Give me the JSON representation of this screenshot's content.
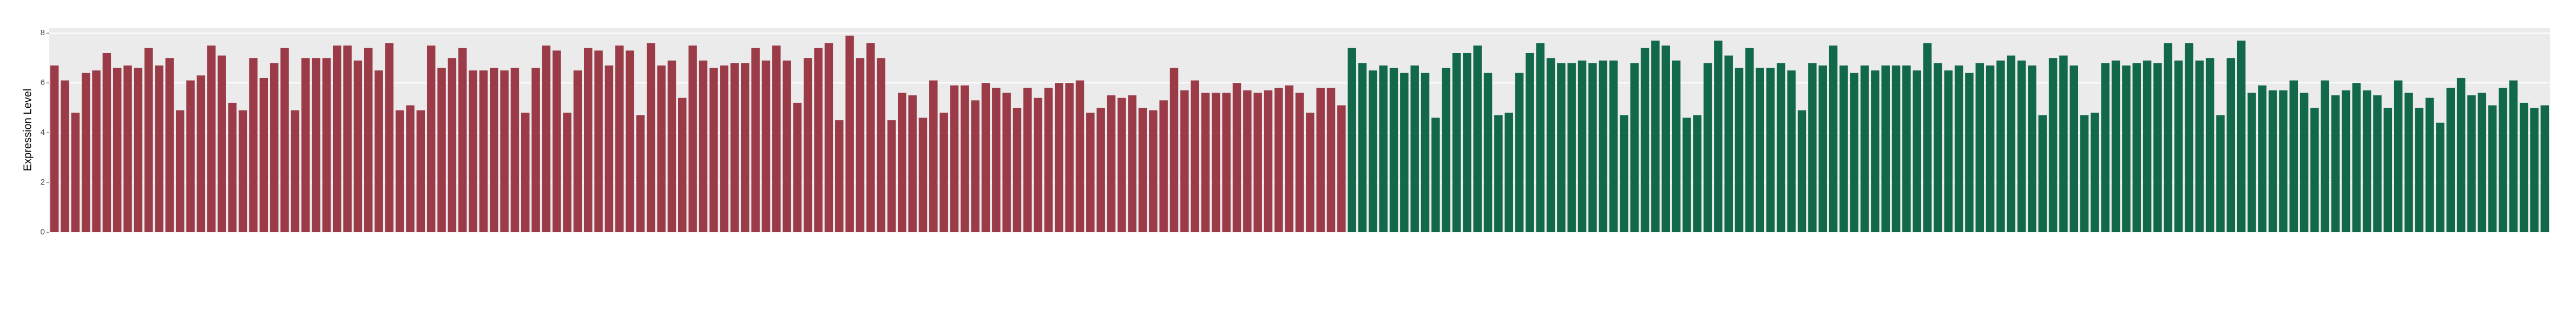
{
  "chart_data": {
    "type": "bar",
    "y_label": "Expression Level",
    "ylim": [
      0,
      8.2
    ],
    "yticks": [
      0,
      2,
      4,
      6,
      8
    ],
    "grid": true,
    "series": [
      {
        "color": "#9a3b47",
        "values": [
          6.7,
          6.1,
          4.8,
          6.4,
          6.5,
          7.2,
          6.6,
          6.7,
          6.6,
          7.4,
          6.7,
          7.0,
          4.9,
          6.1,
          6.3,
          7.5,
          7.1,
          5.2,
          4.9,
          7.0,
          6.2,
          6.8,
          7.4,
          4.9,
          7.0,
          7.0,
          7.0,
          7.5,
          7.5,
          6.9,
          7.4,
          6.5,
          7.6,
          4.9,
          5.1,
          4.9,
          7.5,
          6.6,
          7.0,
          7.4,
          6.5,
          6.5,
          6.6,
          6.5,
          6.6,
          4.8,
          6.6,
          7.5,
          7.3,
          4.8,
          6.5,
          7.4,
          7.3,
          6.7,
          7.5,
          7.3,
          4.7,
          7.6,
          6.7,
          6.9,
          5.4,
          7.5,
          6.9,
          6.6,
          6.7,
          6.8,
          6.8,
          7.4,
          6.9,
          7.5,
          6.9,
          5.2,
          7.0,
          7.4,
          7.6,
          4.5,
          7.9,
          7.0,
          7.6,
          7.0,
          4.5,
          5.6,
          5.5,
          4.6,
          6.1,
          4.8,
          5.9,
          5.9,
          5.3,
          6.0,
          5.8,
          5.6,
          5.0,
          5.8,
          5.4,
          5.8,
          6.0,
          6.0,
          6.1,
          4.8,
          5.0,
          5.5,
          5.4,
          5.5,
          5.0,
          4.9,
          5.3,
          6.6,
          5.7,
          6.1,
          5.6,
          5.6,
          5.6,
          6.0,
          5.7,
          5.6,
          5.7,
          5.8,
          5.9,
          5.6,
          4.8,
          5.8,
          5.8,
          5.1
        ]
      },
      {
        "color": "#11694a",
        "values": [
          7.4,
          6.8,
          6.5,
          6.7,
          6.6,
          6.4,
          6.7,
          6.4,
          4.6,
          6.6,
          7.2,
          7.2,
          7.5,
          6.4,
          4.7,
          4.8,
          6.4,
          7.2,
          7.6,
          7.0,
          6.8,
          6.8,
          6.9,
          6.8,
          6.9,
          6.9,
          4.7,
          6.8,
          7.4,
          7.7,
          7.5,
          6.9,
          4.6,
          4.7,
          6.8,
          7.7,
          7.1,
          6.6,
          7.4,
          6.6,
          6.6,
          6.8,
          6.5,
          4.9,
          6.8,
          6.7,
          7.5,
          6.7,
          6.4,
          6.7,
          6.5,
          6.7,
          6.7,
          6.7,
          6.5,
          7.6,
          6.8,
          6.5,
          6.7,
          6.4,
          6.8,
          6.7,
          6.9,
          7.1,
          6.9,
          6.7,
          4.7,
          7.0,
          7.1,
          6.7,
          4.7,
          4.8,
          6.8,
          6.9,
          6.7,
          6.8,
          6.9,
          6.8,
          7.6,
          6.9,
          7.6,
          6.9,
          7.0,
          4.7,
          7.0,
          7.7,
          5.6,
          5.9,
          5.7,
          5.7,
          6.1,
          5.6,
          5.0,
          6.1,
          5.5,
          5.7,
          6.0,
          5.7,
          5.5,
          5.0,
          6.1,
          5.6,
          5.0,
          5.4,
          4.4,
          5.8,
          6.2,
          5.5,
          5.6,
          5.1,
          5.8,
          6.1,
          5.2,
          5.0,
          5.1
        ]
      }
    ]
  }
}
